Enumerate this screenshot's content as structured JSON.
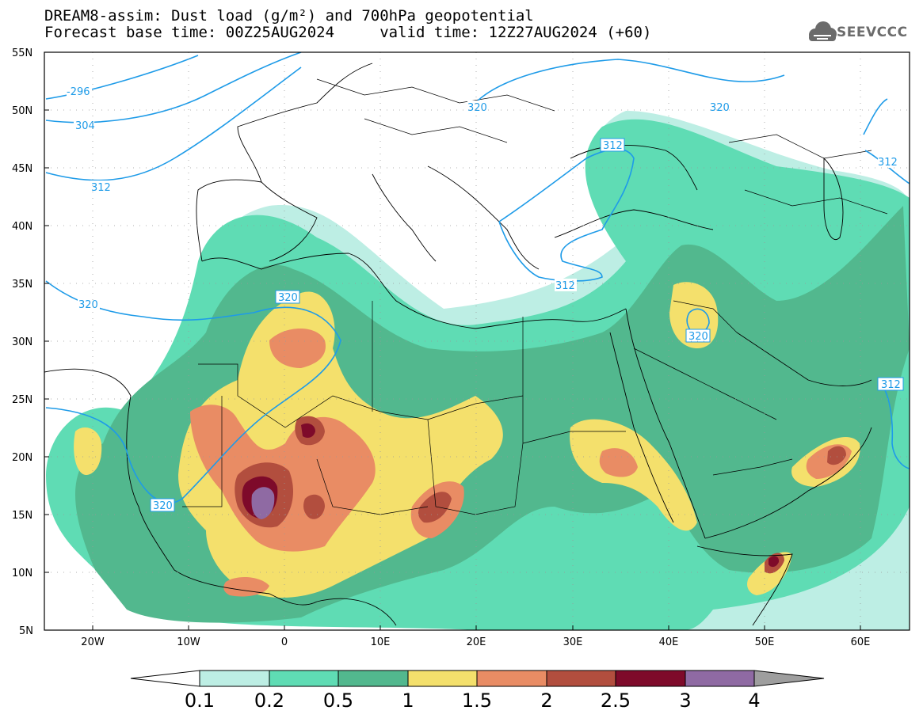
{
  "header": {
    "title_line1": "DREAM8-assim: Dust load (g/m²) and 700hPa geopotential",
    "title_line2": "Forecast base time: 00Z25AUG2024     valid time: 12Z27AUG2024 (+60)"
  },
  "logo": {
    "text": "SEEVCCC",
    "icon": "cloud-icon"
  },
  "map": {
    "lat_labels": [
      "55N",
      "50N",
      "45N",
      "40N",
      "35N",
      "30N",
      "25N",
      "20N",
      "15N",
      "10N",
      "5N"
    ],
    "lon_labels": [
      "20W",
      "10W",
      "0",
      "10E",
      "20E",
      "30E",
      "40E",
      "50E",
      "60E"
    ],
    "contour_labels": [
      "-296",
      "304",
      "312",
      "320",
      "320",
      "312",
      "312",
      "312",
      "320",
      "320",
      "320",
      "312"
    ],
    "colors": {
      "contour": "#1e9be8",
      "coast": "#000000"
    }
  },
  "colorbar": {
    "labels": [
      "0.1",
      "0.2",
      "0.5",
      "1",
      "1.5",
      "2",
      "2.5",
      "3",
      "4"
    ],
    "colors": [
      "#ffffff",
      "#bdeee4",
      "#5fdcb4",
      "#52b88e",
      "#f4e06c",
      "#e98c64",
      "#b24e3e",
      "#7e0a2a",
      "#8f6aa3",
      "#9e9e9e"
    ]
  }
}
